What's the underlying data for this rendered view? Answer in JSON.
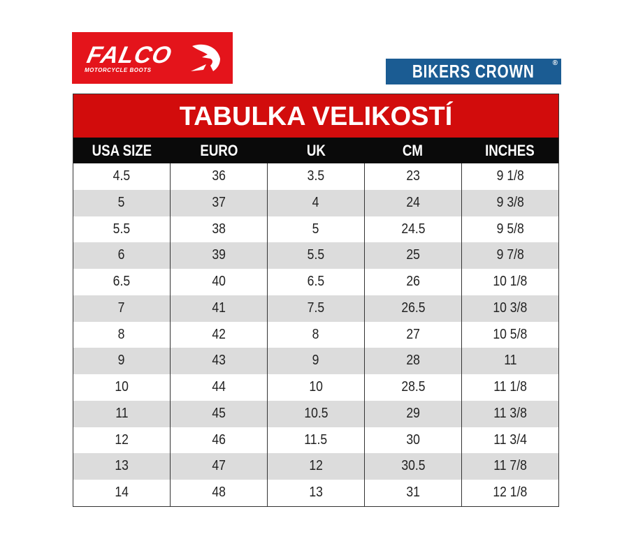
{
  "logos": {
    "falco": {
      "name": "FALCO",
      "subtitle": "MOTORCYCLE BOOTS",
      "color": "#e4141b"
    },
    "bikers_crown": {
      "name": "BIKERS CROWN",
      "mark": "®",
      "color": "#1b5c93"
    }
  },
  "table": {
    "title": "TABULKA VELIKOSTÍ",
    "title_color": "#d20c0c",
    "headers": [
      "USA SIZE",
      "EURO",
      "UK",
      "CM",
      "INCHES"
    ],
    "rows": [
      [
        "4.5",
        "36",
        "3.5",
        "23",
        "9 1/8"
      ],
      [
        "5",
        "37",
        "4",
        "24",
        "9 3/8"
      ],
      [
        "5.5",
        "38",
        "5",
        "24.5",
        "9 5/8"
      ],
      [
        "6",
        "39",
        "5.5",
        "25",
        "9 7/8"
      ],
      [
        "6.5",
        "40",
        "6.5",
        "26",
        "10 1/8"
      ],
      [
        "7",
        "41",
        "7.5",
        "26.5",
        "10 3/8"
      ],
      [
        "8",
        "42",
        "8",
        "27",
        "10 5/8"
      ],
      [
        "9",
        "43",
        "9",
        "28",
        "11"
      ],
      [
        "10",
        "44",
        "10",
        "28.5",
        "11 1/8"
      ],
      [
        "11",
        "45",
        "10.5",
        "29",
        "11 3/8"
      ],
      [
        "12",
        "46",
        "11.5",
        "30",
        "11 3/4"
      ],
      [
        "13",
        "47",
        "12",
        "30.5",
        "11 7/8"
      ],
      [
        "14",
        "48",
        "13",
        "31",
        "12 1/8"
      ]
    ]
  }
}
